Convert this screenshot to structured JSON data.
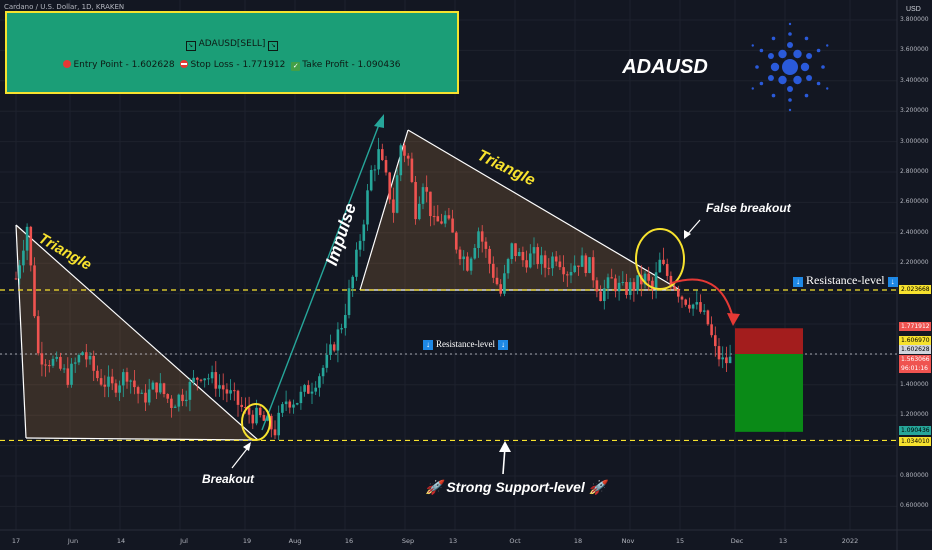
{
  "header": {
    "symbol_line": "Cardano / U.S. Dollar, 1D, KRAKEN"
  },
  "signal_box": {
    "title": "ADAUSD[SELL]",
    "entry_label": "Entry Point - 1.602628",
    "stop_label": "Stop Loss - 1.771912",
    "take_label": "Take Profit - 1.090436",
    "entry_icon": "red-circle-icon",
    "stop_icon": "no-entry-icon",
    "take_icon": "check-mark-icon"
  },
  "ticker_label": "ADAUSD",
  "annotations": {
    "triangle_left": "Triangle",
    "triangle_right": "Triangle",
    "impulse": "Impulse",
    "breakout": "Breakout",
    "false_breakout": "False breakout",
    "resistance_right": "Resistance-level",
    "resistance_mid": "Resistance-level",
    "support": "Strong Support-level",
    "support_icon": "rocket-icon",
    "resistance_icon": "down-arrow-icon"
  },
  "colors": {
    "background": "#131722",
    "up": "#26a69a",
    "down": "#ef5350",
    "box_fill": "#1b9e77",
    "box_border": "#f7e22e",
    "level": "#f7e22e",
    "impulse": "#26a69a"
  },
  "axis": {
    "currency": "USD",
    "y_ticks": [
      "3.800000",
      "3.600000",
      "3.400000",
      "3.200000",
      "3.000000",
      "2.800000",
      "2.600000",
      "2.400000",
      "2.200000",
      "1.400000",
      "1.200000",
      "0.800000",
      "0.600000"
    ],
    "x_ticks": [
      "17",
      "Jun",
      "14",
      "Jul",
      "19",
      "Aug",
      "16",
      "Sep",
      "13",
      "Oct",
      "18",
      "Nov",
      "15",
      "Dec",
      "13",
      "2022"
    ]
  },
  "price_tags": [
    {
      "value": "2.023668",
      "bg": "#f7e22e",
      "fg": "#000"
    },
    {
      "value": "1.771912",
      "bg": "#ef5350",
      "fg": "#fff"
    },
    {
      "value": "1.606970",
      "bg": "#f7e22e",
      "fg": "#000"
    },
    {
      "value": "1.602628",
      "bg": "#d1d4dc",
      "fg": "#000"
    },
    {
      "value": "1.563066",
      "bg": "#ef5350",
      "fg": "#fff"
    },
    {
      "value": "96:01:16",
      "bg": "#ef5350",
      "fg": "#fff"
    },
    {
      "value": "1.090436",
      "bg": "#26a69a",
      "fg": "#000"
    },
    {
      "value": "1.034010",
      "bg": "#f7e22e",
      "fg": "#000"
    }
  ],
  "chart_data": {
    "type": "candlestick",
    "title": "",
    "ylabel": "USD",
    "xlabel": "",
    "ylim": [
      0.5,
      3.9
    ],
    "levels": {
      "resistance": 2.023668,
      "support": 1.03401,
      "entry": 1.602628,
      "stop": 1.771912,
      "take": 1.090436,
      "current": 1.563066
    },
    "close_path": [
      [
        0,
        2.1
      ],
      [
        3,
        2.45
      ],
      [
        6,
        1.6
      ],
      [
        10,
        1.55
      ],
      [
        14,
        1.45
      ],
      [
        18,
        1.62
      ],
      [
        22,
        1.45
      ],
      [
        26,
        1.38
      ],
      [
        30,
        1.48
      ],
      [
        34,
        1.3
      ],
      [
        38,
        1.4
      ],
      [
        42,
        1.28
      ],
      [
        46,
        1.36
      ],
      [
        50,
        1.48
      ],
      [
        54,
        1.42
      ],
      [
        58,
        1.33
      ],
      [
        62,
        1.22
      ],
      [
        66,
        1.18
      ],
      [
        70,
        1.1
      ],
      [
        73,
        1.3
      ],
      [
        76,
        1.3
      ],
      [
        80,
        1.4
      ],
      [
        84,
        1.55
      ],
      [
        88,
        1.8
      ],
      [
        91,
        2.1
      ],
      [
        94,
        2.5
      ],
      [
        96,
        2.8
      ],
      [
        98,
        2.92
      ],
      [
        100,
        2.75
      ],
      [
        102,
        2.55
      ],
      [
        104,
        2.98
      ],
      [
        106,
        2.88
      ],
      [
        108,
        2.55
      ],
      [
        110,
        2.75
      ],
      [
        113,
        2.45
      ],
      [
        116,
        2.5
      ],
      [
        119,
        2.32
      ],
      [
        122,
        2.2
      ],
      [
        125,
        2.42
      ],
      [
        128,
        2.2
      ],
      [
        131,
        2.0
      ],
      [
        134,
        2.3
      ],
      [
        137,
        2.22
      ],
      [
        140,
        2.25
      ],
      [
        143,
        2.18
      ],
      [
        146,
        2.26
      ],
      [
        149,
        2.15
      ],
      [
        152,
        2.22
      ],
      [
        155,
        2.18
      ],
      [
        158,
        2.0
      ],
      [
        161,
        2.08
      ],
      [
        164,
        2.02
      ],
      [
        167,
        2.05
      ],
      [
        170,
        2.1
      ],
      [
        172,
        2.02
      ],
      [
        174,
        2.2
      ],
      [
        176,
        2.12
      ],
      [
        178,
        2.06
      ],
      [
        180,
        1.98
      ],
      [
        182,
        1.95
      ],
      [
        185,
        1.88
      ],
      [
        187,
        1.8
      ],
      [
        189,
        1.62
      ],
      [
        191,
        1.55
      ],
      [
        193,
        1.56
      ]
    ]
  }
}
